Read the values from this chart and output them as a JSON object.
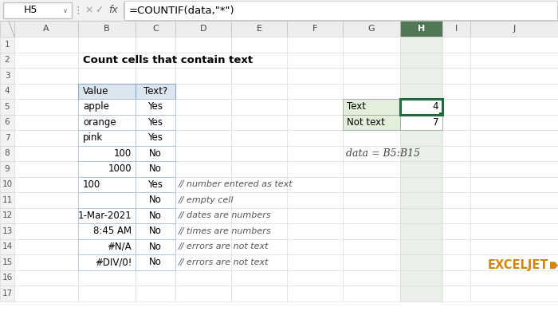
{
  "title": "Count cells that contain text",
  "formula_bar_cell": "H5",
  "formula_bar_formula": "=COUNTIF(data,\"*\")",
  "col_headers": [
    "A",
    "B",
    "C",
    "D",
    "E",
    "F",
    "G",
    "H",
    "I",
    "J"
  ],
  "table_col1_header": "Value",
  "table_col2_header": "Text?",
  "table_rows": [
    [
      "apple",
      "Yes",
      false
    ],
    [
      "orange",
      "Yes",
      false
    ],
    [
      "pink",
      "Yes",
      false
    ],
    [
      "100",
      "No",
      true
    ],
    [
      "1000",
      "No",
      true
    ],
    [
      "100",
      "Yes",
      false
    ],
    [
      "",
      "No",
      false
    ],
    [
      "1-Mar-2021",
      "No",
      true
    ],
    [
      "8:45 AM",
      "No",
      true
    ],
    [
      "#N/A",
      "No",
      true
    ],
    [
      "#DIV/0!",
      "No",
      true
    ]
  ],
  "row_notes": [
    "",
    "",
    "",
    "",
    "",
    "// number entered as text",
    "// empty cell",
    "// dates are numbers",
    "// times are numbers",
    "// errors are not text",
    "// errors are not text"
  ],
  "summary_labels": [
    "Text",
    "Not text"
  ],
  "summary_values": [
    "4",
    "7"
  ],
  "data_ref": "data = B5:B15",
  "bg_color": "#ffffff",
  "formula_bar_bg": "#f2f2f2",
  "col_header_bg": "#ededed",
  "col_header_selected_bg": "#507856",
  "col_header_selected_fg": "#ffffff",
  "col_header_fg": "#444444",
  "row_num_bg": "#f2f2f2",
  "row_num_fg": "#555555",
  "selected_col_cell_bg": "#e8f0e8",
  "table_header_fill": "#dce6f1",
  "table_header_border": "#8eaacc",
  "table_cell_border": "#aec0d4",
  "summary_label_fill": "#e2efda",
  "summary_border": "#aaaaaa",
  "green_border_color": "#1e6b3c",
  "cell_fill_white": "#ffffff",
  "note_color": "#555555",
  "logo_color": "#d4860a",
  "logo_arrow_color": "#d4860a"
}
